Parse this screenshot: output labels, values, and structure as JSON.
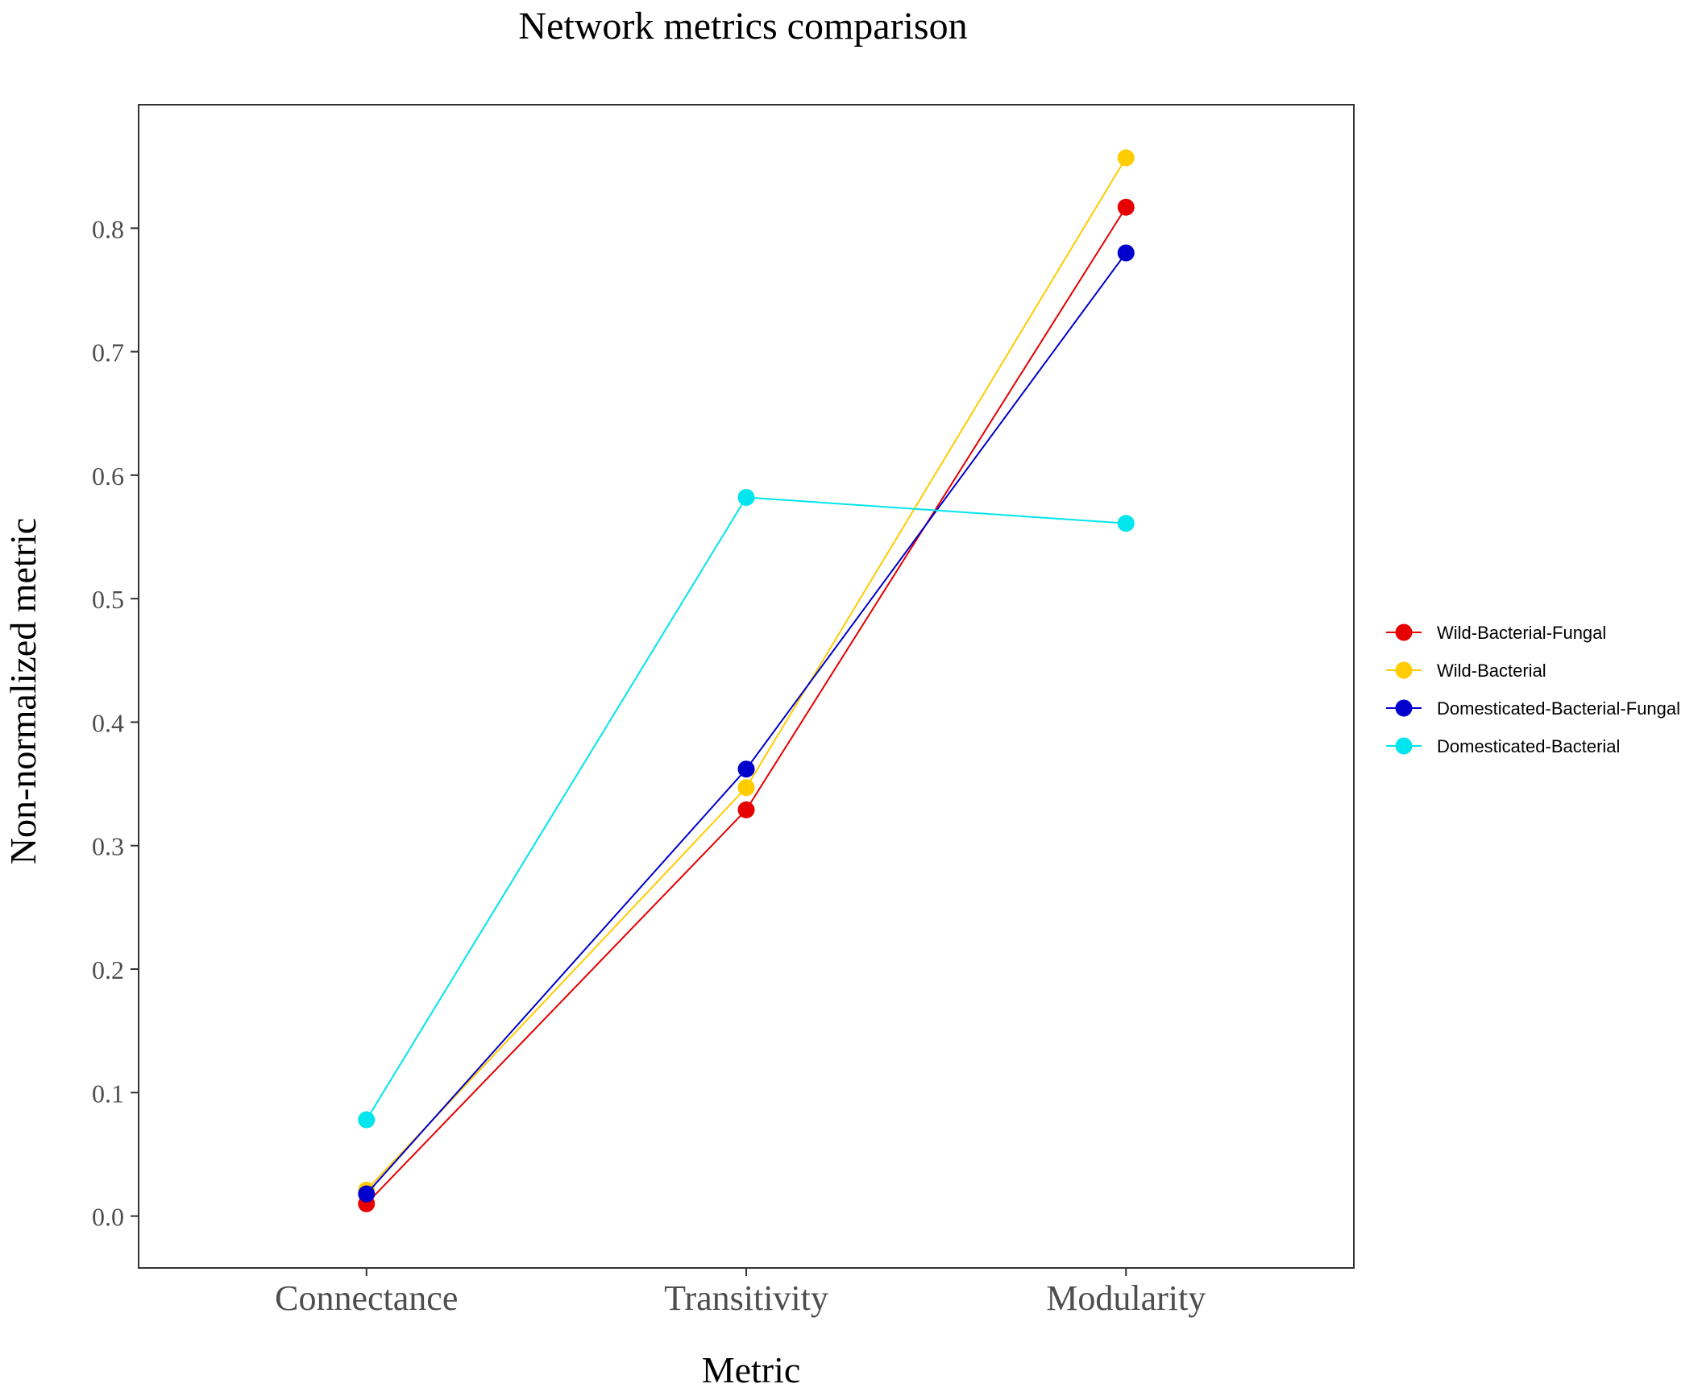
{
  "chart_data": {
    "type": "line",
    "title": "Network metrics comparison",
    "xlabel": "Metric",
    "ylabel": "Non-normalized metric",
    "categories": [
      "Connectance",
      "Transitivity",
      "Modularity"
    ],
    "y_ticks": [
      "0.0",
      "0.1",
      "0.2",
      "0.3",
      "0.4",
      "0.5",
      "0.6",
      "0.7",
      "0.8"
    ],
    "ylim": [
      -0.042,
      0.9
    ],
    "grid": false,
    "legend_position": "right",
    "series": [
      {
        "name": "Wild-Bacterial-Fungal",
        "color": "#E60000",
        "values": [
          0.01,
          0.329,
          0.817
        ]
      },
      {
        "name": "Wild-Bacterial",
        "color": "#FFCC00",
        "values": [
          0.021,
          0.347,
          0.857
        ]
      },
      {
        "name": "Domesticated-Bacterial-Fungal",
        "color": "#0000CC",
        "values": [
          0.018,
          0.362,
          0.78
        ]
      },
      {
        "name": "Domesticated-Bacterial",
        "color": "#00E5EE",
        "values": [
          0.078,
          0.582,
          0.561
        ]
      }
    ]
  }
}
